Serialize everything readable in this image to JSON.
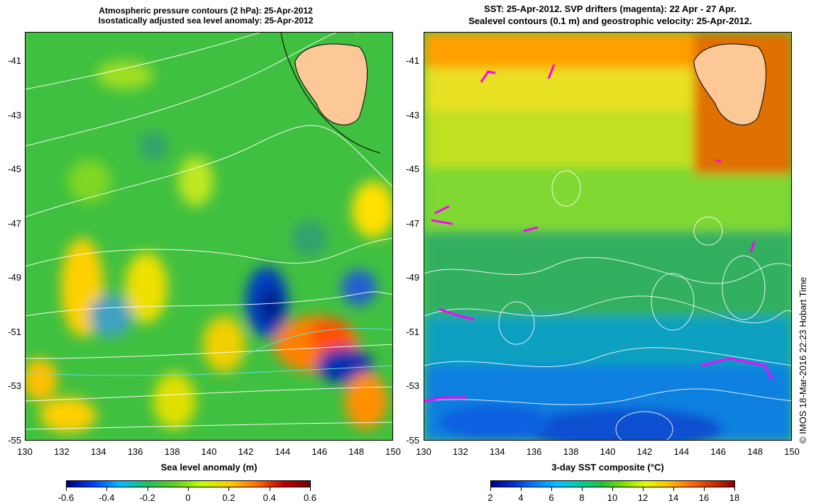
{
  "left_panel": {
    "title_line1": "Atmospheric pressure contours (2 hPa): 25-Apr-2012",
    "title_line2": "Isostatically adjusted sea level anomaly: 25-Apr-2012",
    "colorbar_label": "Sea level anomaly (m)",
    "colorbar_ticks": [
      "-0.6",
      "-0.4",
      "-0.2",
      "0",
      "0.2",
      "0.4",
      "0.6"
    ],
    "colorbar_colors": [
      "#00007f",
      "#0040ff",
      "#00c0ff",
      "#20c060",
      "#60d020",
      "#c0ff00",
      "#ffd000",
      "#ff7000",
      "#c00000",
      "#700000"
    ]
  },
  "right_panel": {
    "title_line1": "SST: 25-Apr-2012. SVP drifters (magenta): 22 Apr - 27 Apr.",
    "title_line2": "Sealevel contours (0.1 m) and geostrophic velocity: 25-Apr-2012.",
    "colorbar_label": "3-day SST composite (°C)",
    "colorbar_ticks": [
      "2",
      "4",
      "6",
      "8",
      "10",
      "12",
      "14",
      "16",
      "18"
    ],
    "colorbar_colors": [
      "#00007f",
      "#0030d0",
      "#0080ff",
      "#00c0ff",
      "#00d0a0",
      "#20c040",
      "#80e000",
      "#e0ff00",
      "#ffc000",
      "#ff7000",
      "#d03000",
      "#900000"
    ]
  },
  "axes": {
    "lat_ticks": [
      "-41",
      "-43",
      "-45",
      "-47",
      "-49",
      "-51",
      "-53",
      "-55"
    ],
    "lon_ticks": [
      "130",
      "132",
      "134",
      "136",
      "138",
      "140",
      "142",
      "144",
      "146",
      "148",
      "150"
    ]
  },
  "credit": "© IMOS 18-Mar-2016 22:23 Hobart Time",
  "colors": {
    "land": "#fcc898",
    "drifter": "#ff00ff",
    "contour": "#ffffff"
  }
}
